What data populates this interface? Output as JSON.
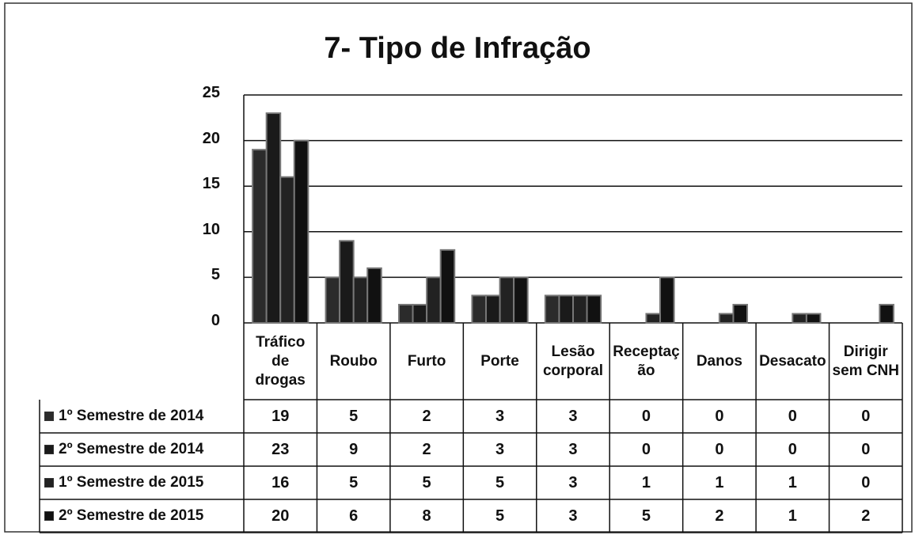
{
  "chart_data": {
    "type": "bar",
    "title": "7- Tipo de Infração",
    "categories": [
      "Tráfico de drogas",
      "Roubo",
      "Furto",
      "Porte",
      "Lesão corporal",
      "Receptação",
      "Danos",
      "Desacato",
      "Dirigir sem CNH"
    ],
    "series": [
      {
        "name": "1º Semestre de 2014",
        "color": "#2b2b2b",
        "values": [
          19,
          5,
          2,
          3,
          3,
          0,
          0,
          0,
          0
        ]
      },
      {
        "name": "2º Semestre de 2014",
        "color": "#1a1a1a",
        "values": [
          23,
          9,
          2,
          3,
          3,
          0,
          0,
          0,
          0
        ]
      },
      {
        "name": "1º Semestre de 2015",
        "color": "#222222",
        "values": [
          16,
          5,
          5,
          5,
          3,
          1,
          1,
          1,
          0
        ]
      },
      {
        "name": "2º Semestre de 2015",
        "color": "#111111",
        "values": [
          20,
          6,
          8,
          5,
          3,
          5,
          2,
          1,
          2
        ]
      }
    ],
    "ylim": [
      0,
      25
    ],
    "yticks": [
      0,
      5,
      10,
      15,
      20,
      25
    ],
    "grid": true
  }
}
